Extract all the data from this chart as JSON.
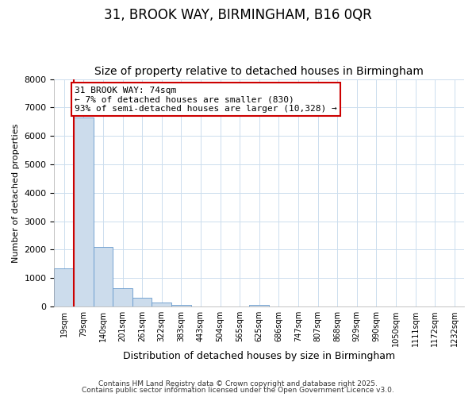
{
  "title1": "31, BROOK WAY, BIRMINGHAM, B16 0QR",
  "title2": "Size of property relative to detached houses in Birmingham",
  "xlabel": "Distribution of detached houses by size in Birmingham",
  "ylabel": "Number of detached properties",
  "categories": [
    "19sqm",
    "79sqm",
    "140sqm",
    "201sqm",
    "261sqm",
    "322sqm",
    "383sqm",
    "443sqm",
    "504sqm",
    "565sqm",
    "625sqm",
    "686sqm",
    "747sqm",
    "807sqm",
    "868sqm",
    "929sqm",
    "990sqm",
    "1050sqm",
    "1111sqm",
    "1172sqm",
    "1232sqm"
  ],
  "values": [
    1350,
    6650,
    2100,
    650,
    310,
    155,
    70,
    0,
    0,
    0,
    70,
    0,
    0,
    0,
    0,
    0,
    0,
    0,
    0,
    0,
    0
  ],
  "bar_color": "#ccdcec",
  "bar_edge_color": "#6699cc",
  "annotation_text": "31 BROOK WAY: 74sqm\n← 7% of detached houses are smaller (830)\n93% of semi-detached houses are larger (10,328) →",
  "annotation_box_color": "#ffffff",
  "annotation_box_edge": "#cc0000",
  "property_line_color": "#cc0000",
  "ylim": [
    0,
    8000
  ],
  "yticks": [
    0,
    1000,
    2000,
    3000,
    4000,
    5000,
    6000,
    7000,
    8000
  ],
  "grid_color": "#ccddee",
  "background_color": "#ffffff",
  "footer1": "Contains HM Land Registry data © Crown copyright and database right 2025.",
  "footer2": "Contains public sector information licensed under the Open Government Licence v3.0.",
  "title_fontsize": 12,
  "subtitle_fontsize": 10
}
